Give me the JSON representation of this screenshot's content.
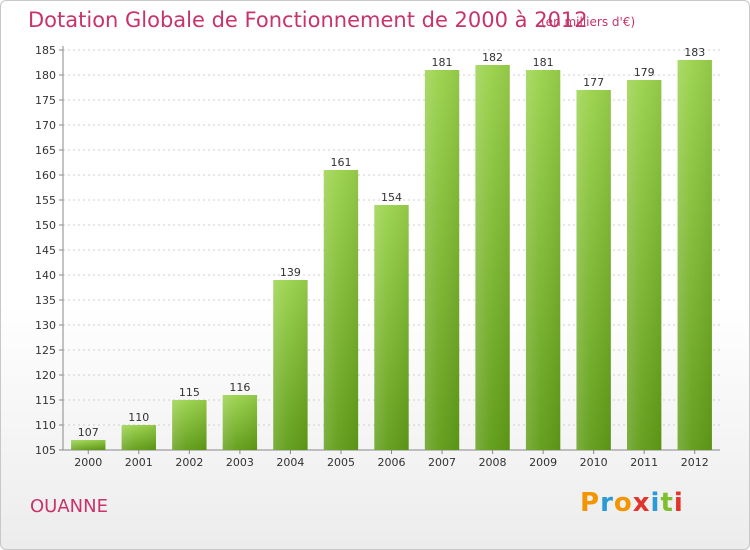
{
  "chart_data": {
    "type": "bar",
    "title": "Dotation Globale de Fonctionnement de 2000 à 2012",
    "unit": "(en milliers d'€)",
    "categories": [
      "2000",
      "2001",
      "2002",
      "2003",
      "2004",
      "2005",
      "2006",
      "2007",
      "2008",
      "2009",
      "2010",
      "2011",
      "2012"
    ],
    "values": [
      107,
      110,
      115,
      116,
      139,
      161,
      154,
      181,
      182,
      181,
      177,
      179,
      183
    ],
    "ylim": [
      105,
      185
    ],
    "yticks": [
      105,
      110,
      115,
      120,
      125,
      130,
      135,
      140,
      145,
      150,
      155,
      160,
      165,
      170,
      175,
      180,
      185
    ],
    "grid": true,
    "bar_color": "#7fbf2f"
  },
  "commune": "OUANNE",
  "logo": {
    "letters": [
      "P",
      "r",
      "o",
      "x",
      "i",
      "t",
      "i"
    ],
    "colors": [
      "#f29500",
      "#2a9bd7",
      "#f29500",
      "#e2342b",
      "#2a9bd7",
      "#7fbf2f",
      "#e2342b"
    ]
  }
}
